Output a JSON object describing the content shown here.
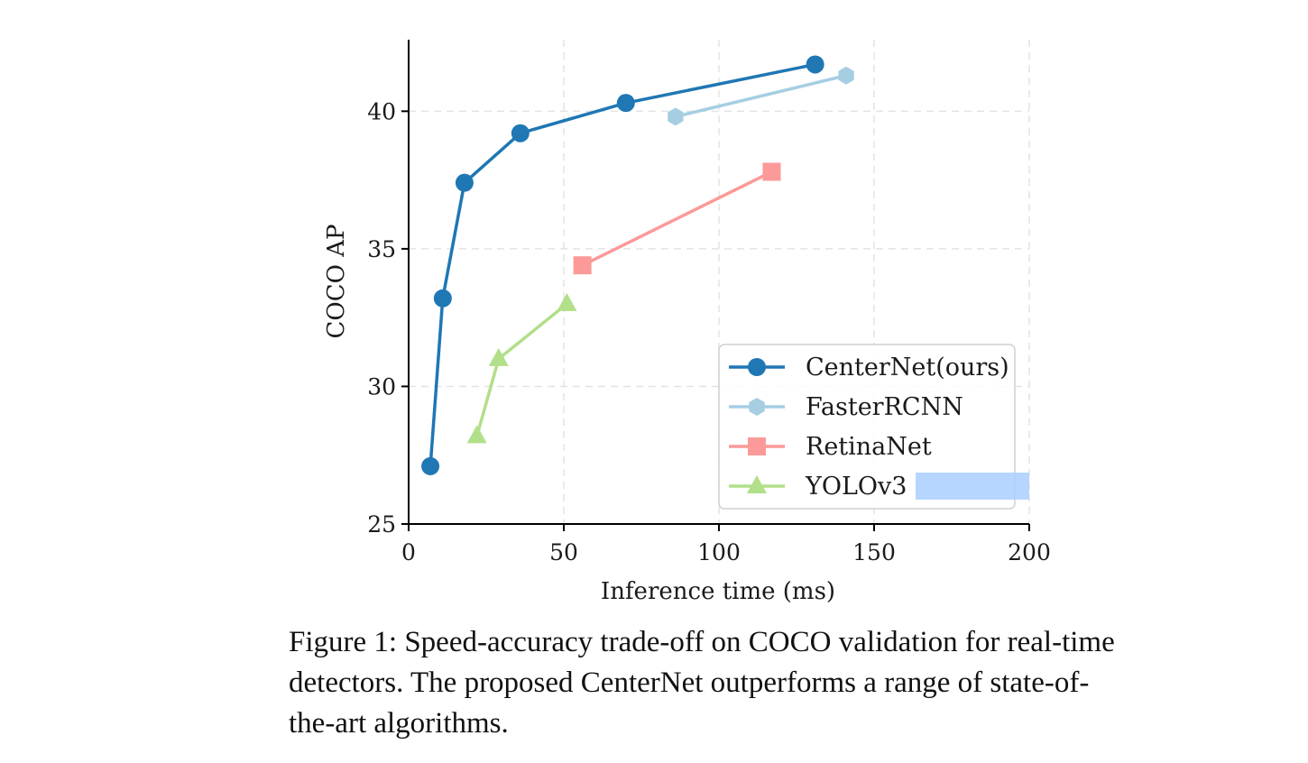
{
  "chart_data": {
    "type": "line",
    "title": "",
    "xlabel": "Inference time (ms)",
    "ylabel": "COCO AP",
    "xlim": [
      0,
      200
    ],
    "ylim": [
      25,
      42.6
    ],
    "x_ticks": [
      0,
      50,
      100,
      150,
      200
    ],
    "y_ticks": [
      25,
      30,
      35,
      40
    ],
    "grid": "dashed",
    "legend_position": "bottom-right",
    "series": [
      {
        "name": "CenterNet(ours)",
        "color": "#1f77b4",
        "marker": "circle",
        "x": [
          7,
          11,
          18,
          36,
          70,
          131
        ],
        "y": [
          27.1,
          33.2,
          37.4,
          39.2,
          40.3,
          41.7
        ]
      },
      {
        "name": "FasterRCNN",
        "color": "#a6cee3",
        "marker": "hexagon",
        "x": [
          86,
          141
        ],
        "y": [
          39.8,
          41.3
        ]
      },
      {
        "name": "RetinaNet",
        "color": "#fb9a99",
        "marker": "square",
        "x": [
          56,
          117
        ],
        "y": [
          34.4,
          37.8
        ]
      },
      {
        "name": "YOLOv3",
        "color": "#b2df8a",
        "marker": "triangle",
        "x": [
          22,
          29,
          51
        ],
        "y": [
          28.2,
          31.0,
          33.0
        ]
      }
    ]
  },
  "caption": "Figure 1: Speed-accuracy trade-off on COCO validation for real-time detectors. The proposed CenterNet outperforms a range of state-of-the-art algorithms."
}
